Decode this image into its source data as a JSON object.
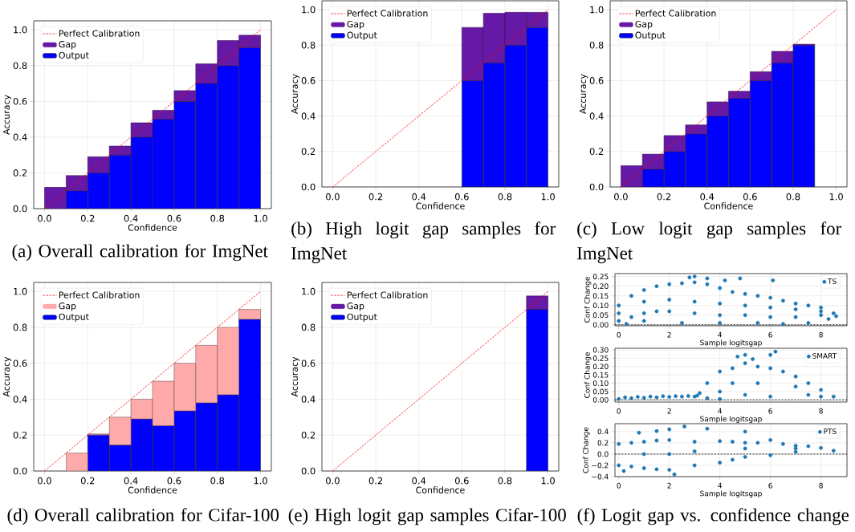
{
  "chart_data": [
    {
      "type": "bar",
      "title": "(a) Overall calibration for ImgNet",
      "xlabel": "Confidence",
      "ylabel": "Accuracy",
      "x": [
        0.05,
        0.15,
        0.25,
        0.35,
        0.45,
        0.55,
        0.65,
        0.75,
        0.85,
        0.95
      ],
      "xlim": [
        -0.05,
        1.05
      ],
      "ylim": [
        0,
        1.05
      ],
      "xticks": [
        {
          "value": 0,
          "label": "0.0"
        },
        {
          "value": 0.2,
          "label": "0.2"
        },
        {
          "value": 0.4,
          "label": "0.4"
        },
        {
          "value": 0.6,
          "label": "0.6"
        },
        {
          "value": 0.8,
          "label": "0.8"
        },
        {
          "value": 1,
          "label": "1.0"
        }
      ],
      "yticks": [
        {
          "value": 0,
          "label": "0.0"
        },
        {
          "value": 0.2,
          "label": "0.2"
        },
        {
          "value": 0.4,
          "label": "0.4"
        },
        {
          "value": 0.6,
          "label": "0.6"
        },
        {
          "value": 0.8,
          "label": "0.8"
        },
        {
          "value": 1,
          "label": "1.0"
        }
      ],
      "grid": true,
      "legend": "top left",
      "series": [
        {
          "name": "Perfect Calibration",
          "type": "line",
          "x": [
            0,
            1
          ],
          "values": [
            0,
            1
          ],
          "color": "#ff0000",
          "line_style": "dashed"
        },
        {
          "name": "Gap",
          "color": "#6619a6",
          "base": [
            0,
            0.1,
            0.2,
            0.3,
            0.4,
            0.5,
            0.6,
            0.7,
            0.8,
            0.9
          ],
          "values": [
            0.12,
            0.085,
            0.09,
            0.05,
            0.08,
            0.05,
            0.06,
            0.11,
            0.14,
            0.07
          ]
        },
        {
          "name": "Output",
          "color": "#0000ff",
          "values": [
            null,
            0.1,
            0.2,
            0.3,
            0.4,
            0.5,
            0.6,
            0.7,
            0.8,
            0.9
          ]
        }
      ]
    },
    {
      "type": "bar",
      "title": "(b) High logit gap samples for ImgNet",
      "xlabel": "Confidence",
      "ylabel": "Accuracy",
      "x": [
        0.65,
        0.75,
        0.85,
        0.95
      ],
      "xlim": [
        -0.05,
        1.05
      ],
      "ylim": [
        0,
        1.05
      ],
      "xticks": [
        {
          "value": 0,
          "label": "0.0"
        },
        {
          "value": 0.2,
          "label": "0.2"
        },
        {
          "value": 0.4,
          "label": "0.4"
        },
        {
          "value": 0.6,
          "label": "0.6"
        },
        {
          "value": 0.8,
          "label": "0.8"
        },
        {
          "value": 1,
          "label": "1.0"
        }
      ],
      "yticks": [
        {
          "value": 0,
          "label": "0.0"
        },
        {
          "value": 0.2,
          "label": "0.2"
        },
        {
          "value": 0.4,
          "label": "0.4"
        },
        {
          "value": 0.6,
          "label": "0.6"
        },
        {
          "value": 0.8,
          "label": "0.8"
        },
        {
          "value": 1,
          "label": "1.0"
        }
      ],
      "grid": true,
      "legend": "top left",
      "series": [
        {
          "name": "Perfect Calibration",
          "type": "line",
          "x": [
            0,
            1
          ],
          "values": [
            0,
            1
          ],
          "color": "#ff0000",
          "line_style": "dashed"
        },
        {
          "name": "Gap",
          "color": "#6619a6",
          "base": [
            0.6,
            0.7,
            0.8,
            0.9
          ],
          "values": [
            0.3,
            0.28,
            0.185,
            0.085
          ]
        },
        {
          "name": "Output",
          "color": "#0000ff",
          "values": [
            0.6,
            0.7,
            0.8,
            0.9
          ]
        }
      ]
    },
    {
      "type": "bar",
      "title": "(c) Low logit gap samples for ImgNet",
      "xlabel": "Confidence",
      "ylabel": "Accuracy",
      "x": [
        0.05,
        0.15,
        0.25,
        0.35,
        0.45,
        0.55,
        0.65,
        0.75,
        0.85
      ],
      "xlim": [
        -0.05,
        1.05
      ],
      "ylim": [
        0,
        1.05
      ],
      "xticks": [
        {
          "value": 0,
          "label": "0.0"
        },
        {
          "value": 0.2,
          "label": "0.2"
        },
        {
          "value": 0.4,
          "label": "0.4"
        },
        {
          "value": 0.6,
          "label": "0.6"
        },
        {
          "value": 0.8,
          "label": "0.8"
        },
        {
          "value": 1,
          "label": "1.0"
        }
      ],
      "yticks": [
        {
          "value": 0,
          "label": "0.0"
        },
        {
          "value": 0.2,
          "label": "0.2"
        },
        {
          "value": 0.4,
          "label": "0.4"
        },
        {
          "value": 0.6,
          "label": "0.6"
        },
        {
          "value": 0.8,
          "label": "0.8"
        },
        {
          "value": 1,
          "label": "1.0"
        }
      ],
      "grid": true,
      "legend": "top left",
      "series": [
        {
          "name": "Perfect Calibration",
          "type": "line",
          "x": [
            0,
            1
          ],
          "values": [
            0,
            1
          ],
          "color": "#ff0000",
          "line_style": "dashed"
        },
        {
          "name": "Gap",
          "color": "#6619a6",
          "base": [
            0,
            0.1,
            0.2,
            0.3,
            0.4,
            0.5,
            0.6,
            0.7,
            0.8
          ],
          "values": [
            0.12,
            0.085,
            0.09,
            0.05,
            0.08,
            0.04,
            0.05,
            0.065,
            0.005
          ]
        },
        {
          "name": "Output",
          "color": "#0000ff",
          "values": [
            null,
            0.1,
            0.2,
            0.3,
            0.4,
            0.5,
            0.6,
            0.7,
            0.8
          ]
        }
      ]
    },
    {
      "type": "bar",
      "title": "(d) Overall calibration for Cifar-100",
      "xlabel": "Confidence",
      "ylabel": "Accuracy",
      "x": [
        0.15,
        0.25,
        0.35,
        0.45,
        0.55,
        0.65,
        0.75,
        0.85,
        0.95
      ],
      "xlim": [
        -0.05,
        1.05
      ],
      "ylim": [
        0,
        1.05
      ],
      "xticks": [
        {
          "value": 0,
          "label": "0.0"
        },
        {
          "value": 0.2,
          "label": "0.2"
        },
        {
          "value": 0.4,
          "label": "0.4"
        },
        {
          "value": 0.6,
          "label": "0.6"
        },
        {
          "value": 0.8,
          "label": "0.8"
        },
        {
          "value": 1,
          "label": "1.0"
        }
      ],
      "yticks": [
        {
          "value": 0,
          "label": "0.0"
        },
        {
          "value": 0.2,
          "label": "0.2"
        },
        {
          "value": 0.4,
          "label": "0.4"
        },
        {
          "value": 0.6,
          "label": "0.6"
        },
        {
          "value": 0.8,
          "label": "0.8"
        },
        {
          "value": 1,
          "label": "1.0"
        }
      ],
      "grid": true,
      "legend": "top left",
      "series": [
        {
          "name": "Perfect Calibration",
          "type": "line",
          "x": [
            0,
            1
          ],
          "values": [
            0,
            1
          ],
          "color": "#ff0000",
          "line_style": "dashed"
        },
        {
          "name": "Gap",
          "color": "#ffaaaa",
          "base": [
            0,
            0.2,
            0.145,
            0.29,
            0.253,
            0.335,
            0.38,
            0.425,
            0.845
          ],
          "values": [
            0.1,
            0.005,
            0.155,
            0.11,
            0.247,
            0.265,
            0.32,
            0.375,
            0.055
          ]
        },
        {
          "name": "Output",
          "color": "#0000ff",
          "values": [
            null,
            0.205,
            0.145,
            0.29,
            0.253,
            0.335,
            0.38,
            0.425,
            0.845
          ]
        }
      ]
    },
    {
      "type": "bar",
      "title": "(e) High logit gap samples Cifar-100",
      "xlabel": "Confidence",
      "ylabel": "Accuracy",
      "x": [
        0.95
      ],
      "xlim": [
        -0.05,
        1.05
      ],
      "ylim": [
        0,
        1.05
      ],
      "xticks": [
        {
          "value": 0,
          "label": "0.0"
        },
        {
          "value": 0.2,
          "label": "0.2"
        },
        {
          "value": 0.4,
          "label": "0.4"
        },
        {
          "value": 0.6,
          "label": "0.6"
        },
        {
          "value": 0.8,
          "label": "0.8"
        },
        {
          "value": 1,
          "label": "1.0"
        }
      ],
      "yticks": [
        {
          "value": 0,
          "label": "0.0"
        },
        {
          "value": 0.2,
          "label": "0.2"
        },
        {
          "value": 0.4,
          "label": "0.4"
        },
        {
          "value": 0.6,
          "label": "0.6"
        },
        {
          "value": 0.8,
          "label": "0.8"
        },
        {
          "value": 1,
          "label": "1.0"
        }
      ],
      "grid": true,
      "legend": "top left",
      "series": [
        {
          "name": "Perfect Calibration",
          "type": "line",
          "x": [
            0,
            1
          ],
          "values": [
            0,
            1
          ],
          "color": "#ff0000",
          "line_style": "dashed"
        },
        {
          "name": "Gap",
          "color": "#6619a6",
          "base": [
            0.9
          ],
          "values": [
            0.075
          ]
        },
        {
          "name": "Output",
          "color": "#0000ff",
          "values": [
            0.9
          ]
        }
      ]
    },
    {
      "type": "scatter",
      "xlabel": "Sample logitsgap",
      "ylabel": "Conf Change",
      "xlim": [
        -0.15,
        9.03
      ],
      "ylim": [
        -0.005,
        0.265
      ],
      "xticks": [
        0,
        2,
        4,
        6,
        8
      ],
      "yticks": [
        {
          "value": 0,
          "label": "0.00"
        },
        {
          "value": 0.05,
          "label": "0.05"
        },
        {
          "value": 0.1,
          "label": "0.10"
        },
        {
          "value": 0.15,
          "label": "0.15"
        },
        {
          "value": 0.2,
          "label": "0.20"
        },
        {
          "value": 0.25,
          "label": "0.25"
        }
      ],
      "grid": true,
      "legend": "top right",
      "marker": "circle",
      "ref_lines": [
        {
          "axis": "y",
          "value": 0,
          "color": "#000000",
          "line_style": "dashed"
        }
      ],
      "series": [
        {
          "name": "TS",
          "color": "#1f77b4",
          "x": [
            0,
            0.5,
            1,
            1.5,
            2,
            2.5,
            3,
            3.5,
            4,
            4.5,
            5,
            5.5,
            6,
            6.5,
            7,
            7.5,
            8,
            8.5,
            2.8,
            3,
            3.5,
            4.2,
            4.8,
            6.1,
            0,
            0.5,
            1,
            1.5,
            2,
            3,
            4,
            5,
            6,
            7,
            8,
            8.6,
            0.3,
            1,
            2.5,
            4,
            5.5,
            6.5,
            7.5,
            8.3,
            1,
            2,
            3,
            4,
            5,
            6,
            7,
            8,
            0
          ],
          "values": [
            0.1,
            0.15,
            0.18,
            0.2,
            0.21,
            0.215,
            0.22,
            0.21,
            0.19,
            0.17,
            0.16,
            0.15,
            0.14,
            0.125,
            0.11,
            0.1,
            0.09,
            0.06,
            0.245,
            0.25,
            0.24,
            0.23,
            0.24,
            0.23,
            0.02,
            0.04,
            0.06,
            0.07,
            0.07,
            0.06,
            0.05,
            0.05,
            0.04,
            0.04,
            0.05,
            0.045,
            0.005,
            0.02,
            0.01,
            0.01,
            0.01,
            0.005,
            0.01,
            0.03,
            0.12,
            0.13,
            0.12,
            0.11,
            0.1,
            0.09,
            0.08,
            0.07,
            0.06
          ]
        }
      ]
    },
    {
      "type": "scatter",
      "xlabel": "Sample logitsgap",
      "ylabel": "Conf Change",
      "xlim": [
        -0.15,
        9.03
      ],
      "ylim": [
        -0.013,
        0.31
      ],
      "xticks": [
        0,
        2,
        4,
        6,
        8
      ],
      "yticks": [
        {
          "value": 0,
          "label": "0.00"
        },
        {
          "value": 0.05,
          "label": "0.05"
        },
        {
          "value": 0.1,
          "label": "0.10"
        },
        {
          "value": 0.15,
          "label": "0.15"
        },
        {
          "value": 0.2,
          "label": "0.20"
        },
        {
          "value": 0.25,
          "label": "0.25"
        },
        {
          "value": 0.3,
          "label": "0.30"
        }
      ],
      "grid": true,
      "legend": "top right",
      "marker": "circle",
      "ref_lines": [
        {
          "axis": "y",
          "value": 0,
          "color": "#000000",
          "line_style": "dashed"
        }
      ],
      "series": [
        {
          "name": "SMART",
          "color": "#1f77b4",
          "x": [
            0,
            0.25,
            0.5,
            0.75,
            1,
            1.25,
            1.5,
            1.75,
            2,
            2.25,
            2.5,
            2.75,
            3,
            3.1,
            3.2,
            3.5,
            3.5,
            4,
            4,
            4,
            4.5,
            4.5,
            5,
            5,
            5.5,
            5.5,
            6,
            6,
            6.2,
            6.5,
            7,
            7,
            7.5,
            7.5,
            8,
            8,
            8.5,
            5,
            6,
            4.7,
            5.3
          ],
          "values": [
            0.005,
            0.015,
            0.01,
            0.018,
            0.012,
            0.02,
            0.015,
            0.022,
            0.018,
            0.022,
            0.02,
            0.023,
            0.02,
            0.025,
            0.04,
            0.1,
            0.01,
            0.17,
            0.05,
            0.005,
            0.19,
            0.1,
            0.22,
            0.27,
            0.2,
            0.1,
            0.19,
            0.27,
            0.29,
            0.17,
            0.14,
            0.08,
            0.1,
            0.03,
            0.06,
            0.02,
            0.02,
            0.03,
            0.02,
            0.26,
            0.245
          ]
        }
      ]
    },
    {
      "type": "scatter",
      "title": "(f) Logit gap vs. confidence change",
      "xlabel": "Sample logitsgap",
      "ylabel": "Conf Change",
      "xlim": [
        -0.15,
        9.03
      ],
      "ylim": [
        -0.4,
        0.54
      ],
      "xticks": [
        0,
        2,
        4,
        6,
        8
      ],
      "yticks": [
        {
          "value": -0.4,
          "label": "−0.4"
        },
        {
          "value": -0.2,
          "label": "−0.2"
        },
        {
          "value": 0,
          "label": "0.0"
        },
        {
          "value": 0.2,
          "label": "0.2"
        },
        {
          "value": 0.4,
          "label": "0.4"
        }
      ],
      "grid": true,
      "legend": "top right",
      "marker": "circle",
      "ref_lines": [
        {
          "axis": "y",
          "value": 0,
          "color": "#000000",
          "line_style": "dashed"
        }
      ],
      "series": [
        {
          "name": "PTS",
          "color": "#1f77b4",
          "x": [
            0,
            0,
            0.5,
            0.5,
            1,
            1,
            1.5,
            1.5,
            2,
            2,
            2.2,
            2.6,
            3,
            3,
            3.5,
            4,
            4,
            4.5,
            4.5,
            5,
            5,
            5,
            5.5,
            6,
            6,
            6.5,
            7,
            7,
            7.5,
            8,
            8.5,
            0.8,
            1.5,
            2,
            0.2,
            1,
            3,
            5,
            7,
            2
          ],
          "values": [
            0.18,
            -0.2,
            0.2,
            -0.22,
            0.22,
            -0.25,
            0.24,
            -0.27,
            0.25,
            -0.28,
            -0.36,
            0.49,
            0.22,
            -0.2,
            0.45,
            0.23,
            -0.15,
            0.22,
            -0.1,
            0.4,
            0.2,
            -0.05,
            0.2,
            0.25,
            -0.02,
            0.18,
            0.15,
            0.04,
            0.14,
            0.11,
            0.06,
            0.38,
            0.41,
            0.44,
            -0.3,
            0,
            0.05,
            0.1,
            0.1,
            0
          ]
        }
      ]
    }
  ]
}
